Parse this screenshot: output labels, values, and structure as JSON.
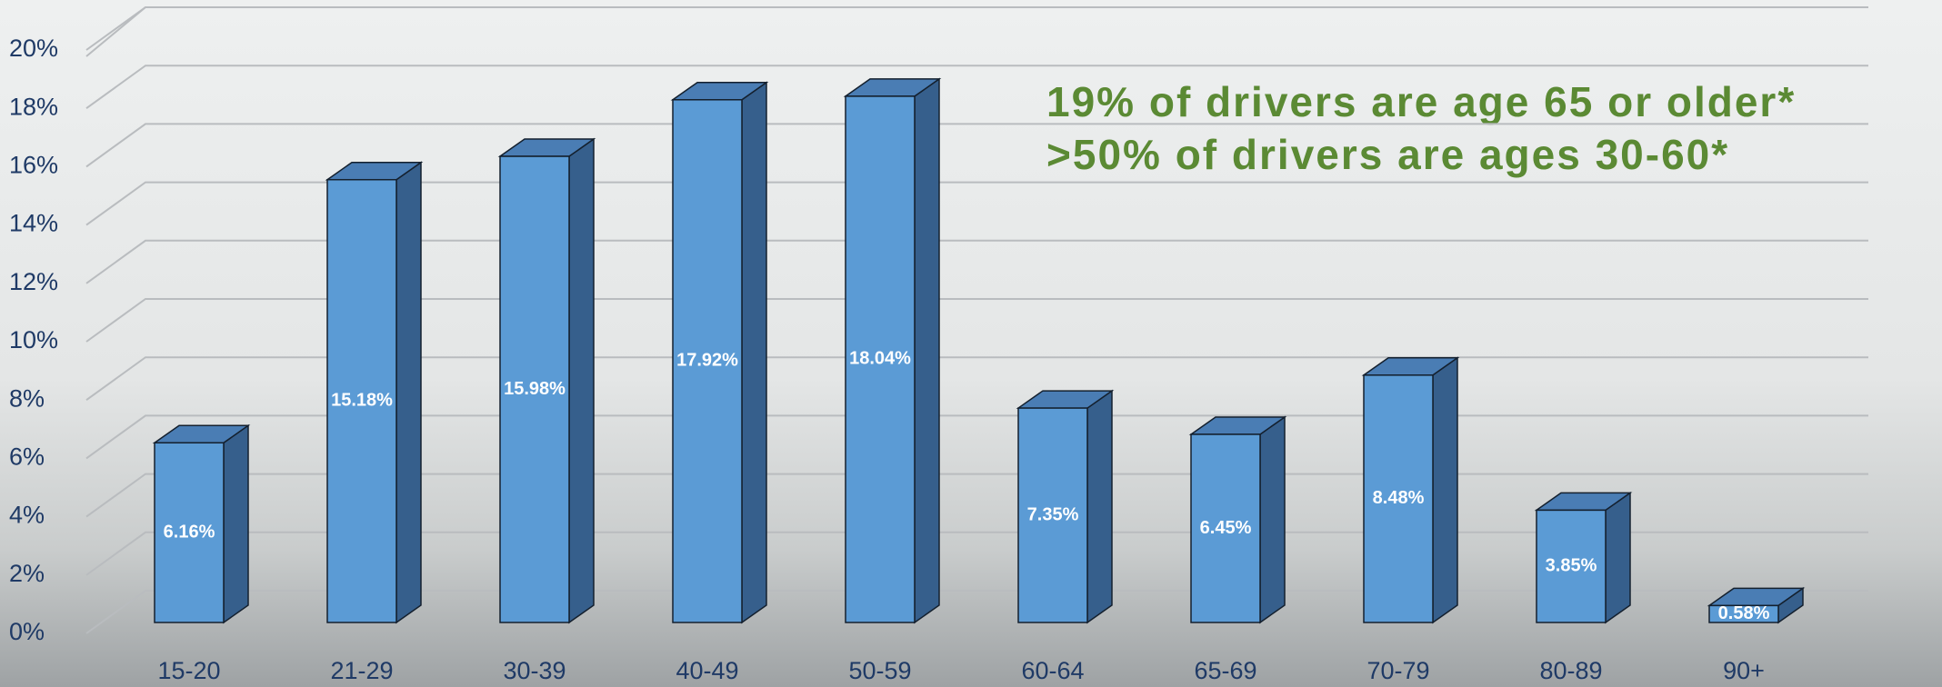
{
  "chart_data": {
    "type": "bar",
    "annotations": [
      "19% of drivers are age 65 or older*",
      ">50% of drivers are ages 30-60*"
    ],
    "categories": [
      "15-20",
      "21-29",
      "30-39",
      "40-49",
      "50-59",
      "60-64",
      "65-69",
      "70-79",
      "80-89",
      "90+"
    ],
    "values": [
      6.16,
      15.18,
      15.98,
      17.92,
      18.04,
      7.35,
      6.45,
      8.48,
      3.85,
      0.58
    ],
    "value_labels": [
      "6.16%",
      "15.18%",
      "15.98%",
      "17.92%",
      "18.04%",
      "7.35%",
      "6.45%",
      "8.48%",
      "3.85%",
      "0.58%"
    ],
    "color": "#5b9bd5",
    "ylim": [
      0,
      20
    ],
    "yticks": [
      {
        "value": 0,
        "label": "0%"
      },
      {
        "value": 2,
        "label": "2%"
      },
      {
        "value": 4,
        "label": "4%"
      },
      {
        "value": 6,
        "label": "6%"
      },
      {
        "value": 8,
        "label": "8%"
      },
      {
        "value": 10,
        "label": "10%"
      },
      {
        "value": 12,
        "label": "12%"
      },
      {
        "value": 14,
        "label": "14%"
      },
      {
        "value": 16,
        "label": "16%"
      },
      {
        "value": 18,
        "label": "18%"
      },
      {
        "value": 20,
        "label": "20%"
      }
    ],
    "grid": true
  }
}
